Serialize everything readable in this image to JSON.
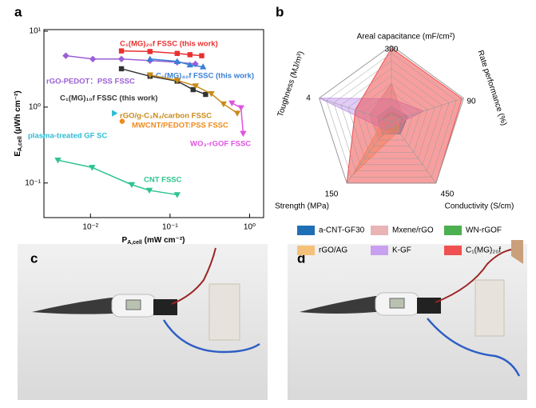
{
  "chart_data": [
    {
      "type": "line",
      "panel": "a",
      "log_x": true,
      "log_y": true,
      "xlabel": {
        "symbol": "P",
        "subscript": "A,cell",
        "unit": " (mW cm⁻²)"
      },
      "ylabel": {
        "symbol": "E",
        "subscript": "A,cell",
        "unit": " (μWh cm⁻²)"
      },
      "xlim": [
        0.0026,
        1.5
      ],
      "ylim": [
        0.035,
        10.5
      ],
      "xticks": [
        {
          "value": 0.01,
          "label": "10⁻²"
        },
        {
          "value": 0.1,
          "label": "10⁻¹"
        },
        {
          "value": 1,
          "label": "10⁰"
        }
      ],
      "yticks": [
        {
          "value": 0.1,
          "label": "10⁻¹"
        },
        {
          "value": 1,
          "label": "10⁰"
        },
        {
          "value": 10,
          "label": "10¹"
        }
      ],
      "series": [
        {
          "name": "C₁(MG)₂₀f FSSC (this work)",
          "color": "#e8312f",
          "marker": "square",
          "x": [
            0.0245,
            0.056,
            0.123,
            0.178,
            0.25
          ],
          "values": [
            5.5,
            5.4,
            5.1,
            4.9,
            4.75
          ]
        },
        {
          "name": "rGO-PEDOT：PSS FSSC",
          "color": "#9b5fd6",
          "marker": "diamond",
          "x": [
            0.0049,
            0.0107,
            0.0245,
            0.056,
            0.123,
            0.208
          ],
          "values": [
            4.75,
            4.3,
            4.3,
            4.1,
            3.9,
            3.7
          ]
        },
        {
          "name": "C₁(MG)₄₀f FSSC (this work)",
          "color": "#3a7fd5",
          "marker": "triangle",
          "x": [
            0.056,
            0.123,
            0.178,
            0.26
          ],
          "values": [
            4.3,
            4.0,
            3.6,
            3.4
          ]
        },
        {
          "name": "C₁(MG)₁₀f FSSC (this work)",
          "color": "#333333",
          "marker": "square",
          "x": [
            0.0245,
            0.056,
            0.123,
            0.195,
            0.28
          ],
          "values": [
            3.2,
            2.55,
            2.2,
            1.7,
            1.47
          ]
        },
        {
          "name": "rGO/g-C₃N₄/carbon FSSC",
          "color": "#c98a1a",
          "marker": "triangle-down",
          "x": [
            0.056,
            0.123,
            0.21,
            0.33,
            0.47,
            0.7
          ],
          "values": [
            2.65,
            2.25,
            1.9,
            1.5,
            1.1,
            0.83
          ]
        },
        {
          "name": "plasma-treated GF SC",
          "color": "#2bbcd4",
          "marker": "triangle-right",
          "x": [
            0.02
          ],
          "values": [
            0.83
          ]
        },
        {
          "name": "MWCNT/PEDOT:PSS FSSC",
          "color": "#f08a1c",
          "marker": "circle",
          "x": [
            0.025
          ],
          "values": [
            0.65
          ]
        },
        {
          "name": "WO₃-rGOF FSSC",
          "color": "#e052e0",
          "marker": "triangle-down",
          "x": [
            0.6,
            0.78,
            0.83
          ],
          "values": [
            1.13,
            0.98,
            0.45
          ]
        },
        {
          "name": "CNT FSSC",
          "color": "#2ec48e",
          "marker": "triangle-down",
          "x": [
            0.0039,
            0.0105,
            0.033,
            0.055,
            0.123
          ],
          "values": [
            0.2,
            0.16,
            0.095,
            0.08,
            0.07
          ]
        }
      ]
    },
    {
      "type": "radar",
      "panel": "b",
      "rings": 10,
      "axes": [
        {
          "name": "Areal capacitance (mF/cm²)",
          "max": 300
        },
        {
          "name": "Rate performance (%)",
          "max": 90
        },
        {
          "name": "Conductivity (S/cm)",
          "max": 450
        },
        {
          "name": "Strength (MPa)",
          "max": 150
        },
        {
          "name": "Toughness (MJ/m³)",
          "max": 4
        }
      ],
      "series": [
        {
          "name": "a-CNT-GF30",
          "color": "#1f6fb4",
          "values": [
            60,
            20,
            90,
            30,
            0.8
          ]
        },
        {
          "name": "Mxene/rGO",
          "color": "#e8b4b4",
          "values": [
            150,
            15,
            40,
            40,
            1.2
          ]
        },
        {
          "name": "WN-rGOF",
          "color": "#4caf50",
          "values": [
            40,
            15,
            60,
            20,
            0.5
          ]
        },
        {
          "name": "rGO/AG",
          "color": "#f5c07a",
          "values": [
            20,
            10,
            70,
            130,
            0.4
          ]
        },
        {
          "name": "K-GF",
          "color": "#c9a0f0",
          "values": [
            90,
            40,
            30,
            20,
            4
          ]
        },
        {
          "name": "C₁(MG)₂₀f",
          "color": "#f05050",
          "values": [
            290,
            88,
            450,
            150,
            2
          ]
        }
      ]
    }
  ],
  "photos": [
    {
      "panel": "c"
    },
    {
      "panel": "d"
    }
  ]
}
